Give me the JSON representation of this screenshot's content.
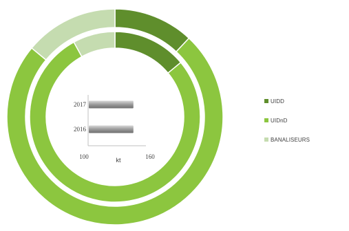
{
  "chart_data": [
    {
      "type": "donut",
      "legend_position": "right",
      "legend": [
        "UIDD",
        "UIDnD",
        "BANALISEURS"
      ],
      "colors": [
        "#5f8e2c",
        "#8cc63f",
        "#c5dcb0"
      ],
      "rings": [
        {
          "name": "",
          "values": [
            12,
            74,
            14
          ]
        },
        {
          "name": "",
          "values": [
            14,
            78,
            8
          ]
        }
      ]
    },
    {
      "type": "bar",
      "orientation": "horizontal",
      "categories": [
        "2017",
        "2016"
      ],
      "values": [
        147,
        147
      ],
      "xlim": [
        100,
        160
      ],
      "xticks": [
        "100",
        "160"
      ],
      "xlabel": "kt",
      "colors": [
        "#8a8a8a"
      ]
    }
  ]
}
